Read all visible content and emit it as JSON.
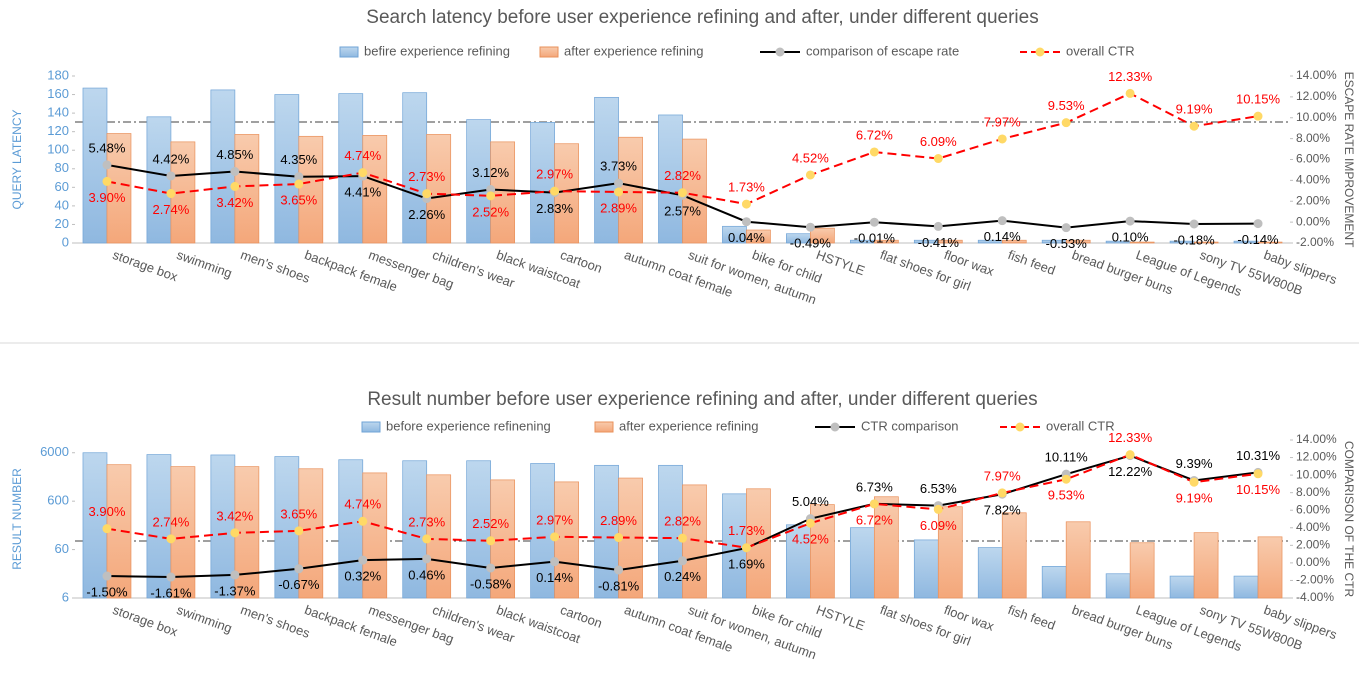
{
  "chart_data": [
    {
      "type": "bar",
      "title": "Search latency before user experience refining and after, under different queries",
      "y_label": "QUERY LATENCY",
      "y2_label": "ESCAPE RATE IMPROVEMENT",
      "categories": [
        "storage box",
        "swimming",
        "men's shoes",
        "backpack female",
        "messenger bag",
        "children's wear",
        "black waistcoat",
        "cartoon",
        "autumn coat female",
        "suit for women, autumn",
        "bike for child",
        "HSTYLE",
        "flat shoes for girl",
        "floor wax",
        "fish feed",
        "bread burger buns",
        "League of Legends",
        "sony TV 55W800B",
        "baby slippers"
      ],
      "ylim": [
        0,
        180
      ],
      "yticks": [
        0,
        20,
        40,
        60,
        80,
        100,
        120,
        140,
        160,
        180
      ],
      "y2lim": [
        -2,
        14
      ],
      "y2ticks": [
        {
          "value": -2,
          "label": "-2.00%"
        },
        {
          "value": 0,
          "label": "0.00%"
        },
        {
          "value": 2,
          "label": "2.00%"
        },
        {
          "value": 4,
          "label": "4.00%"
        },
        {
          "value": 6,
          "label": "6.00%"
        },
        {
          "value": 8,
          "label": "8.00%"
        },
        {
          "value": 10,
          "label": "10.00%"
        },
        {
          "value": 12,
          "label": "12.00%"
        },
        {
          "value": 14,
          "label": "14.00%"
        }
      ],
      "series": [
        {
          "name": "befire experience refining",
          "color": "#9dc3e6",
          "values": [
            167,
            136,
            165,
            160,
            161,
            162,
            133,
            130,
            157,
            138,
            18,
            10,
            3,
            3,
            3,
            3,
            2,
            2,
            2
          ]
        },
        {
          "name": "after experience refining",
          "color": "#f4b183",
          "values": [
            118,
            109,
            117,
            115,
            116,
            117,
            109,
            107,
            114,
            112,
            14,
            16,
            3,
            3,
            3,
            3,
            1,
            1,
            1
          ]
        },
        {
          "name": "comparison of escape rate",
          "color": "#000000",
          "marker_color": "#bfbfbf",
          "axis": "y2",
          "dashed": false,
          "values": [
            5.48,
            4.42,
            4.85,
            4.35,
            4.41,
            2.26,
            3.12,
            2.83,
            3.73,
            2.57,
            0.04,
            -0.49,
            -0.01,
            -0.41,
            0.14,
            -0.53,
            0.1,
            -0.18,
            -0.14
          ],
          "value_labels": [
            "5.48%",
            "4.42%",
            "4.85%",
            "4.35%",
            "4.41%",
            "2.26%",
            "3.12%",
            "2.83%",
            "3.73%",
            "2.57%",
            "0.04%",
            "-0.49%",
            "-0.01%",
            "-0.41%",
            "0.14%",
            "-0.53%",
            "0.10%",
            "-0.18%",
            "-0.14%"
          ]
        },
        {
          "name": "overall CTR",
          "color": "#ff0000",
          "marker_color": "#ffd966",
          "axis": "y2",
          "dashed": true,
          "values": [
            3.9,
            2.74,
            3.42,
            3.65,
            4.74,
            2.73,
            2.52,
            2.97,
            2.89,
            2.82,
            1.73,
            4.52,
            6.72,
            6.09,
            7.97,
            9.53,
            12.33,
            9.19,
            10.15
          ],
          "value_labels": [
            "3.90%",
            "2.74%",
            "3.42%",
            "3.65%",
            "4.74%",
            "2.73%",
            "2.52%",
            "2.97%",
            "2.89%",
            "2.82%",
            "1.73%",
            "4.52%",
            "6.72%",
            "6.09%",
            "7.97%",
            "9.53%",
            "12.33%",
            "9.19%",
            "10.15%"
          ]
        }
      ]
    },
    {
      "type": "bar",
      "title": "Result number before user experience refining and after, under different queries",
      "y_label": "RESULT NUMBER",
      "y2_label": "COMPARISON OF THE CTR",
      "categories": [
        "storage box",
        "swimming",
        "men's shoes",
        "backpack female",
        "messenger bag",
        "children's wear",
        "black waistcoat",
        "cartoon",
        "autumn coat female",
        "suit for women, autumn",
        "bike for child",
        "HSTYLE",
        "flat shoes for girl",
        "floor wax",
        "fish feed",
        "bread burger buns",
        "League of Legends",
        "sony TV 55W800B",
        "baby slippers"
      ],
      "log_y": true,
      "ylim": [
        6,
        11000
      ],
      "yticks": [
        6,
        60,
        600,
        6000
      ],
      "y2lim": [
        -4,
        14
      ],
      "y2ticks": [
        {
          "value": -4,
          "label": "-4.00%"
        },
        {
          "value": -2,
          "label": "-2.00%"
        },
        {
          "value": 0,
          "label": "0.00%"
        },
        {
          "value": 2,
          "label": "2.00%"
        },
        {
          "value": 4,
          "label": "4.00%"
        },
        {
          "value": 6,
          "label": "6.00%"
        },
        {
          "value": 8,
          "label": "8.00%"
        },
        {
          "value": 10,
          "label": "10.00%"
        },
        {
          "value": 12,
          "label": "12.00%"
        },
        {
          "value": 14,
          "label": "14.00%"
        }
      ],
      "series": [
        {
          "name": "before experience refinening",
          "color": "#9dc3e6",
          "values": [
            6000,
            5500,
            5400,
            5000,
            4300,
            4100,
            4100,
            3600,
            3300,
            3300,
            850,
            195,
            170,
            95,
            66,
            27,
            19,
            17,
            17
          ]
        },
        {
          "name": "after experience refining",
          "color": "#f4b183",
          "values": [
            3400,
            3100,
            3100,
            2800,
            2300,
            2100,
            1650,
            1500,
            1800,
            1300,
            1080,
            510,
            740,
            460,
            345,
            225,
            83,
            134,
            110
          ]
        },
        {
          "name": "CTR comparison",
          "color": "#000000",
          "marker_color": "#bfbfbf",
          "axis": "y2",
          "dashed": false,
          "values": [
            -1.5,
            -1.61,
            -1.37,
            -0.67,
            0.32,
            0.46,
            -0.58,
            0.14,
            -0.81,
            0.24,
            1.69,
            5.04,
            6.73,
            6.53,
            7.82,
            10.11,
            12.22,
            9.39,
            10.31
          ],
          "value_labels": [
            "-1.50%",
            "-1.61%",
            "-1.37%",
            "-0.67%",
            "0.32%",
            "0.46%",
            "-0.58%",
            "0.14%",
            "-0.81%",
            "0.24%",
            "1.69%",
            "5.04%",
            "6.73%",
            "6.53%",
            "7.82%",
            "10.11%",
            "12.22%",
            "9.39%",
            "10.31%"
          ]
        },
        {
          "name": "overall CTR",
          "color": "#ff0000",
          "marker_color": "#ffd966",
          "axis": "y2",
          "dashed": true,
          "values": [
            3.9,
            2.74,
            3.42,
            3.65,
            4.74,
            2.73,
            2.52,
            2.97,
            2.89,
            2.82,
            1.73,
            4.52,
            6.72,
            6.09,
            7.97,
            9.53,
            12.33,
            9.19,
            10.15
          ],
          "value_labels": [
            "3.90%",
            "2.74%",
            "3.42%",
            "3.65%",
            "4.74%",
            "2.73%",
            "2.52%",
            "2.97%",
            "2.89%",
            "2.82%",
            "1.73%",
            "4.52%",
            "6.72%",
            "6.09%",
            "7.97%",
            "9.53%",
            "12.33%",
            "9.19%",
            "10.15%"
          ]
        }
      ]
    }
  ]
}
